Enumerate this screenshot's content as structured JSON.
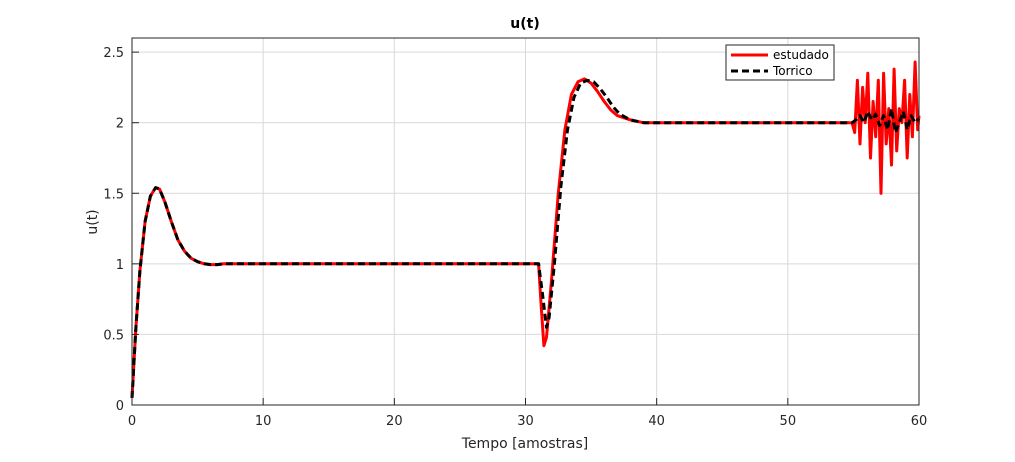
{
  "chart_data": {
    "type": "line",
    "title": "u(t)",
    "xlabel": "Tempo [amostras]",
    "ylabel": "u(t)",
    "xlim": [
      0,
      60
    ],
    "ylim": [
      0,
      2.6
    ],
    "xticks": [
      0,
      10,
      20,
      30,
      40,
      50,
      60
    ],
    "yticks": [
      0,
      0.5,
      1,
      1.5,
      2,
      2.5
    ],
    "xtick_labels": [
      "0",
      "10",
      "20",
      "30",
      "40",
      "50",
      "60"
    ],
    "ytick_labels": [
      "0",
      "0.5",
      "1",
      "1.5",
      "2",
      "2.5"
    ],
    "grid": true,
    "legend_position": "top-right",
    "series": [
      {
        "name": "estudado",
        "color": "#ff0000",
        "style": "solid",
        "x": [
          0,
          0.3,
          0.6,
          1.0,
          1.4,
          1.8,
          2.1,
          2.5,
          3.0,
          3.5,
          4.0,
          4.5,
          5.0,
          5.5,
          6.0,
          6.5,
          7.0,
          7.5,
          8.0,
          9.0,
          10,
          15,
          20,
          25,
          30,
          31.0,
          31.2,
          31.4,
          31.6,
          32.0,
          32.5,
          33.0,
          33.5,
          34.0,
          34.5,
          35.0,
          35.5,
          36.0,
          36.5,
          37.0,
          38.0,
          39.0,
          40.0,
          42,
          45,
          50,
          54.9,
          55.1,
          55.3,
          55.5,
          55.7,
          55.9,
          56.1,
          56.3,
          56.5,
          56.7,
          56.9,
          57.1,
          57.3,
          57.5,
          57.7,
          57.9,
          58.1,
          58.3,
          58.5,
          58.7,
          58.9,
          59.1,
          59.3,
          59.5,
          59.7,
          59.9,
          60
        ],
        "y": [
          0.05,
          0.55,
          0.95,
          1.3,
          1.48,
          1.54,
          1.53,
          1.44,
          1.3,
          1.17,
          1.09,
          1.04,
          1.015,
          1.0,
          0.995,
          0.995,
          1.0,
          1.0,
          1.0,
          1.0,
          1.0,
          1.0,
          1.0,
          1.0,
          1.0,
          1.0,
          0.7,
          0.42,
          0.48,
          0.9,
          1.5,
          1.95,
          2.2,
          2.29,
          2.31,
          2.28,
          2.22,
          2.15,
          2.09,
          2.05,
          2.02,
          2.0,
          2.0,
          2.0,
          2.0,
          2.0,
          2.0,
          1.93,
          2.3,
          1.85,
          2.25,
          2.0,
          2.35,
          1.75,
          2.15,
          1.9,
          2.3,
          1.5,
          2.35,
          1.85,
          2.1,
          1.7,
          2.38,
          1.8,
          2.1,
          2.0,
          2.3,
          1.75,
          2.2,
          1.9,
          2.43,
          1.95,
          2.05
        ]
      },
      {
        "name": "Torrico",
        "color": "#000000",
        "style": "dashed",
        "x": [
          0,
          0.3,
          0.6,
          1.0,
          1.4,
          1.8,
          2.1,
          2.5,
          3.0,
          3.5,
          4.0,
          4.5,
          5.0,
          5.5,
          6.0,
          6.5,
          7.0,
          7.5,
          8.0,
          9.0,
          10,
          15,
          20,
          25,
          30,
          31.0,
          31.3,
          31.6,
          31.8,
          32.2,
          32.7,
          33.2,
          33.7,
          34.2,
          34.7,
          35.2,
          35.7,
          36.2,
          36.7,
          37.2,
          38.0,
          39.0,
          40.0,
          42,
          45,
          50,
          54.9,
          55.2,
          55.5,
          55.8,
          56.1,
          56.4,
          56.7,
          57.0,
          57.3,
          57.6,
          57.9,
          58.2,
          58.5,
          58.8,
          59.1,
          59.4,
          59.7,
          60
        ],
        "y": [
          0.05,
          0.55,
          0.95,
          1.3,
          1.48,
          1.54,
          1.53,
          1.44,
          1.3,
          1.17,
          1.09,
          1.04,
          1.015,
          1.0,
          0.995,
          0.995,
          1.0,
          1.0,
          1.0,
          1.0,
          1.0,
          1.0,
          1.0,
          1.0,
          1.0,
          1.0,
          0.78,
          0.55,
          0.62,
          1.0,
          1.55,
          1.95,
          2.18,
          2.28,
          2.3,
          2.29,
          2.24,
          2.18,
          2.11,
          2.06,
          2.02,
          2.0,
          2.0,
          2.0,
          2.0,
          2.0,
          2.0,
          2.02,
          2.05,
          2.0,
          2.08,
          2.02,
          2.06,
          1.98,
          2.05,
          1.95,
          2.1,
          1.93,
          2.0,
          2.08,
          1.95,
          2.05,
          2.0,
          2.03
        ]
      }
    ]
  }
}
